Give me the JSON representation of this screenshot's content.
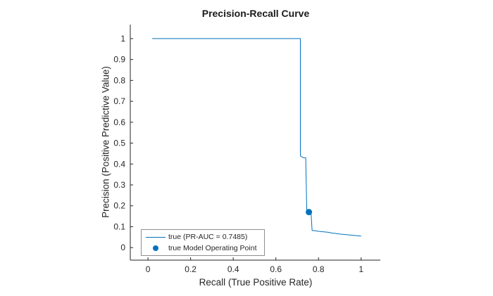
{
  "chart_data": {
    "type": "line",
    "title": "Precision-Recall Curve",
    "xlabel": "Recall (True Positive Rate)",
    "ylabel": "Precision (Positive Predictive Value)",
    "xticks": [
      0,
      0.2,
      0.4,
      0.6,
      0.8,
      1
    ],
    "yticks": [
      0,
      0.1,
      0.2,
      0.3,
      0.4,
      0.5,
      0.6,
      0.7,
      0.8,
      0.9,
      1
    ],
    "xlim": [
      -0.083,
      1.09
    ],
    "ylim": [
      -0.06,
      1.067
    ],
    "grid": false,
    "pr_auc": 0.7485,
    "colors": {
      "line": "#0072BD",
      "marker": "#0072BD",
      "axis": "#262626",
      "tick_label": "#262626",
      "legend_border": "#8f8f8f",
      "background": "#ffffff"
    },
    "legend": {
      "position": "southwest",
      "entries": [
        {
          "label": "true (PR-AUC = 0.7485)",
          "marker": "line"
        },
        {
          "label": "true Model Operating Point",
          "marker": "dot"
        }
      ]
    },
    "series": [
      {
        "name": "true (PR-AUC = 0.7485)",
        "type": "line",
        "points": [
          [
            0.02,
            1.0
          ],
          [
            0.715,
            1.0
          ],
          [
            0.715,
            0.44
          ],
          [
            0.72,
            0.435
          ],
          [
            0.73,
            0.43
          ],
          [
            0.74,
            0.43
          ],
          [
            0.745,
            0.18
          ],
          [
            0.755,
            0.17
          ],
          [
            0.765,
            0.165
          ],
          [
            0.77,
            0.082
          ],
          [
            0.79,
            0.08
          ],
          [
            0.8,
            0.078
          ],
          [
            0.82,
            0.076
          ],
          [
            0.83,
            0.075
          ],
          [
            0.85,
            0.073
          ],
          [
            0.86,
            0.07
          ],
          [
            0.88,
            0.068
          ],
          [
            0.9,
            0.065
          ],
          [
            0.92,
            0.063
          ],
          [
            0.94,
            0.061
          ],
          [
            0.96,
            0.059
          ],
          [
            0.98,
            0.057
          ],
          [
            1.0,
            0.055
          ]
        ]
      },
      {
        "name": "true Model Operating Point",
        "type": "scatter",
        "points": [
          [
            0.755,
            0.17
          ]
        ]
      }
    ]
  }
}
